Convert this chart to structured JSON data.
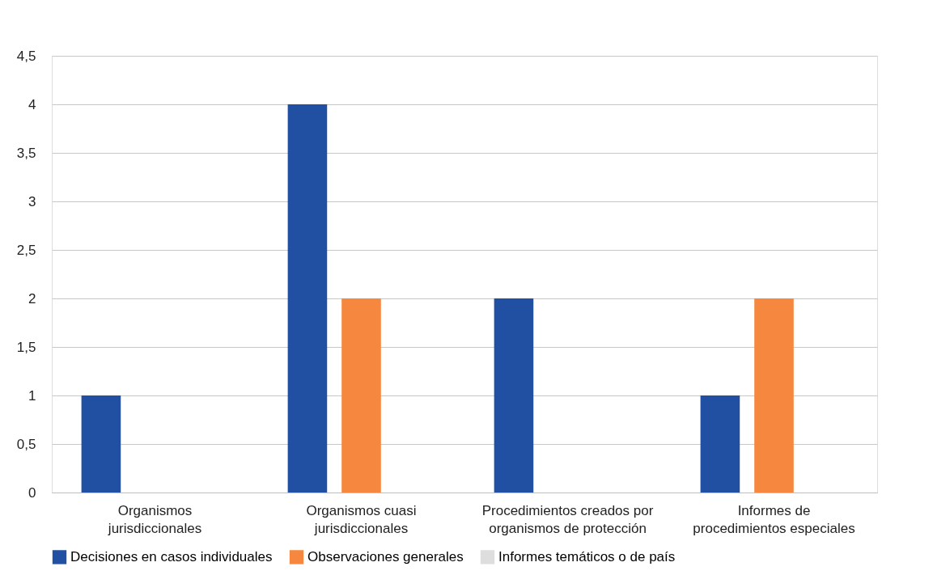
{
  "chart_data": {
    "type": "bar",
    "categories": [
      "Organismos jurisdiccionales",
      "Organismos cuasi jurisdiccionales",
      "Procedimientos creados por organismos de protección",
      "Informes de procedimientos especiales"
    ],
    "series": [
      {
        "name": "Decisiones en casos individuales",
        "color": "#2150a3",
        "values": [
          1,
          4,
          2,
          1
        ]
      },
      {
        "name": "Observaciones generales",
        "color": "#f5873f",
        "values": [
          0,
          2,
          0,
          2
        ]
      },
      {
        "name": "Informes temáticos o de país",
        "color": "#dedede",
        "values": [
          0,
          0,
          0,
          0
        ]
      }
    ],
    "ylim": [
      0,
      4.5
    ],
    "yticks": [
      0,
      {
        "value": 0.5,
        "label": "0,5"
      },
      1,
      {
        "value": 1.5,
        "label": "1,5"
      },
      2,
      {
        "value": 2.5,
        "label": "2,5"
      },
      3,
      {
        "value": 3.5,
        "label": "3,5"
      },
      4,
      {
        "value": 4.5,
        "label": "4,5"
      }
    ],
    "grid": "y",
    "legend": "bottom"
  }
}
